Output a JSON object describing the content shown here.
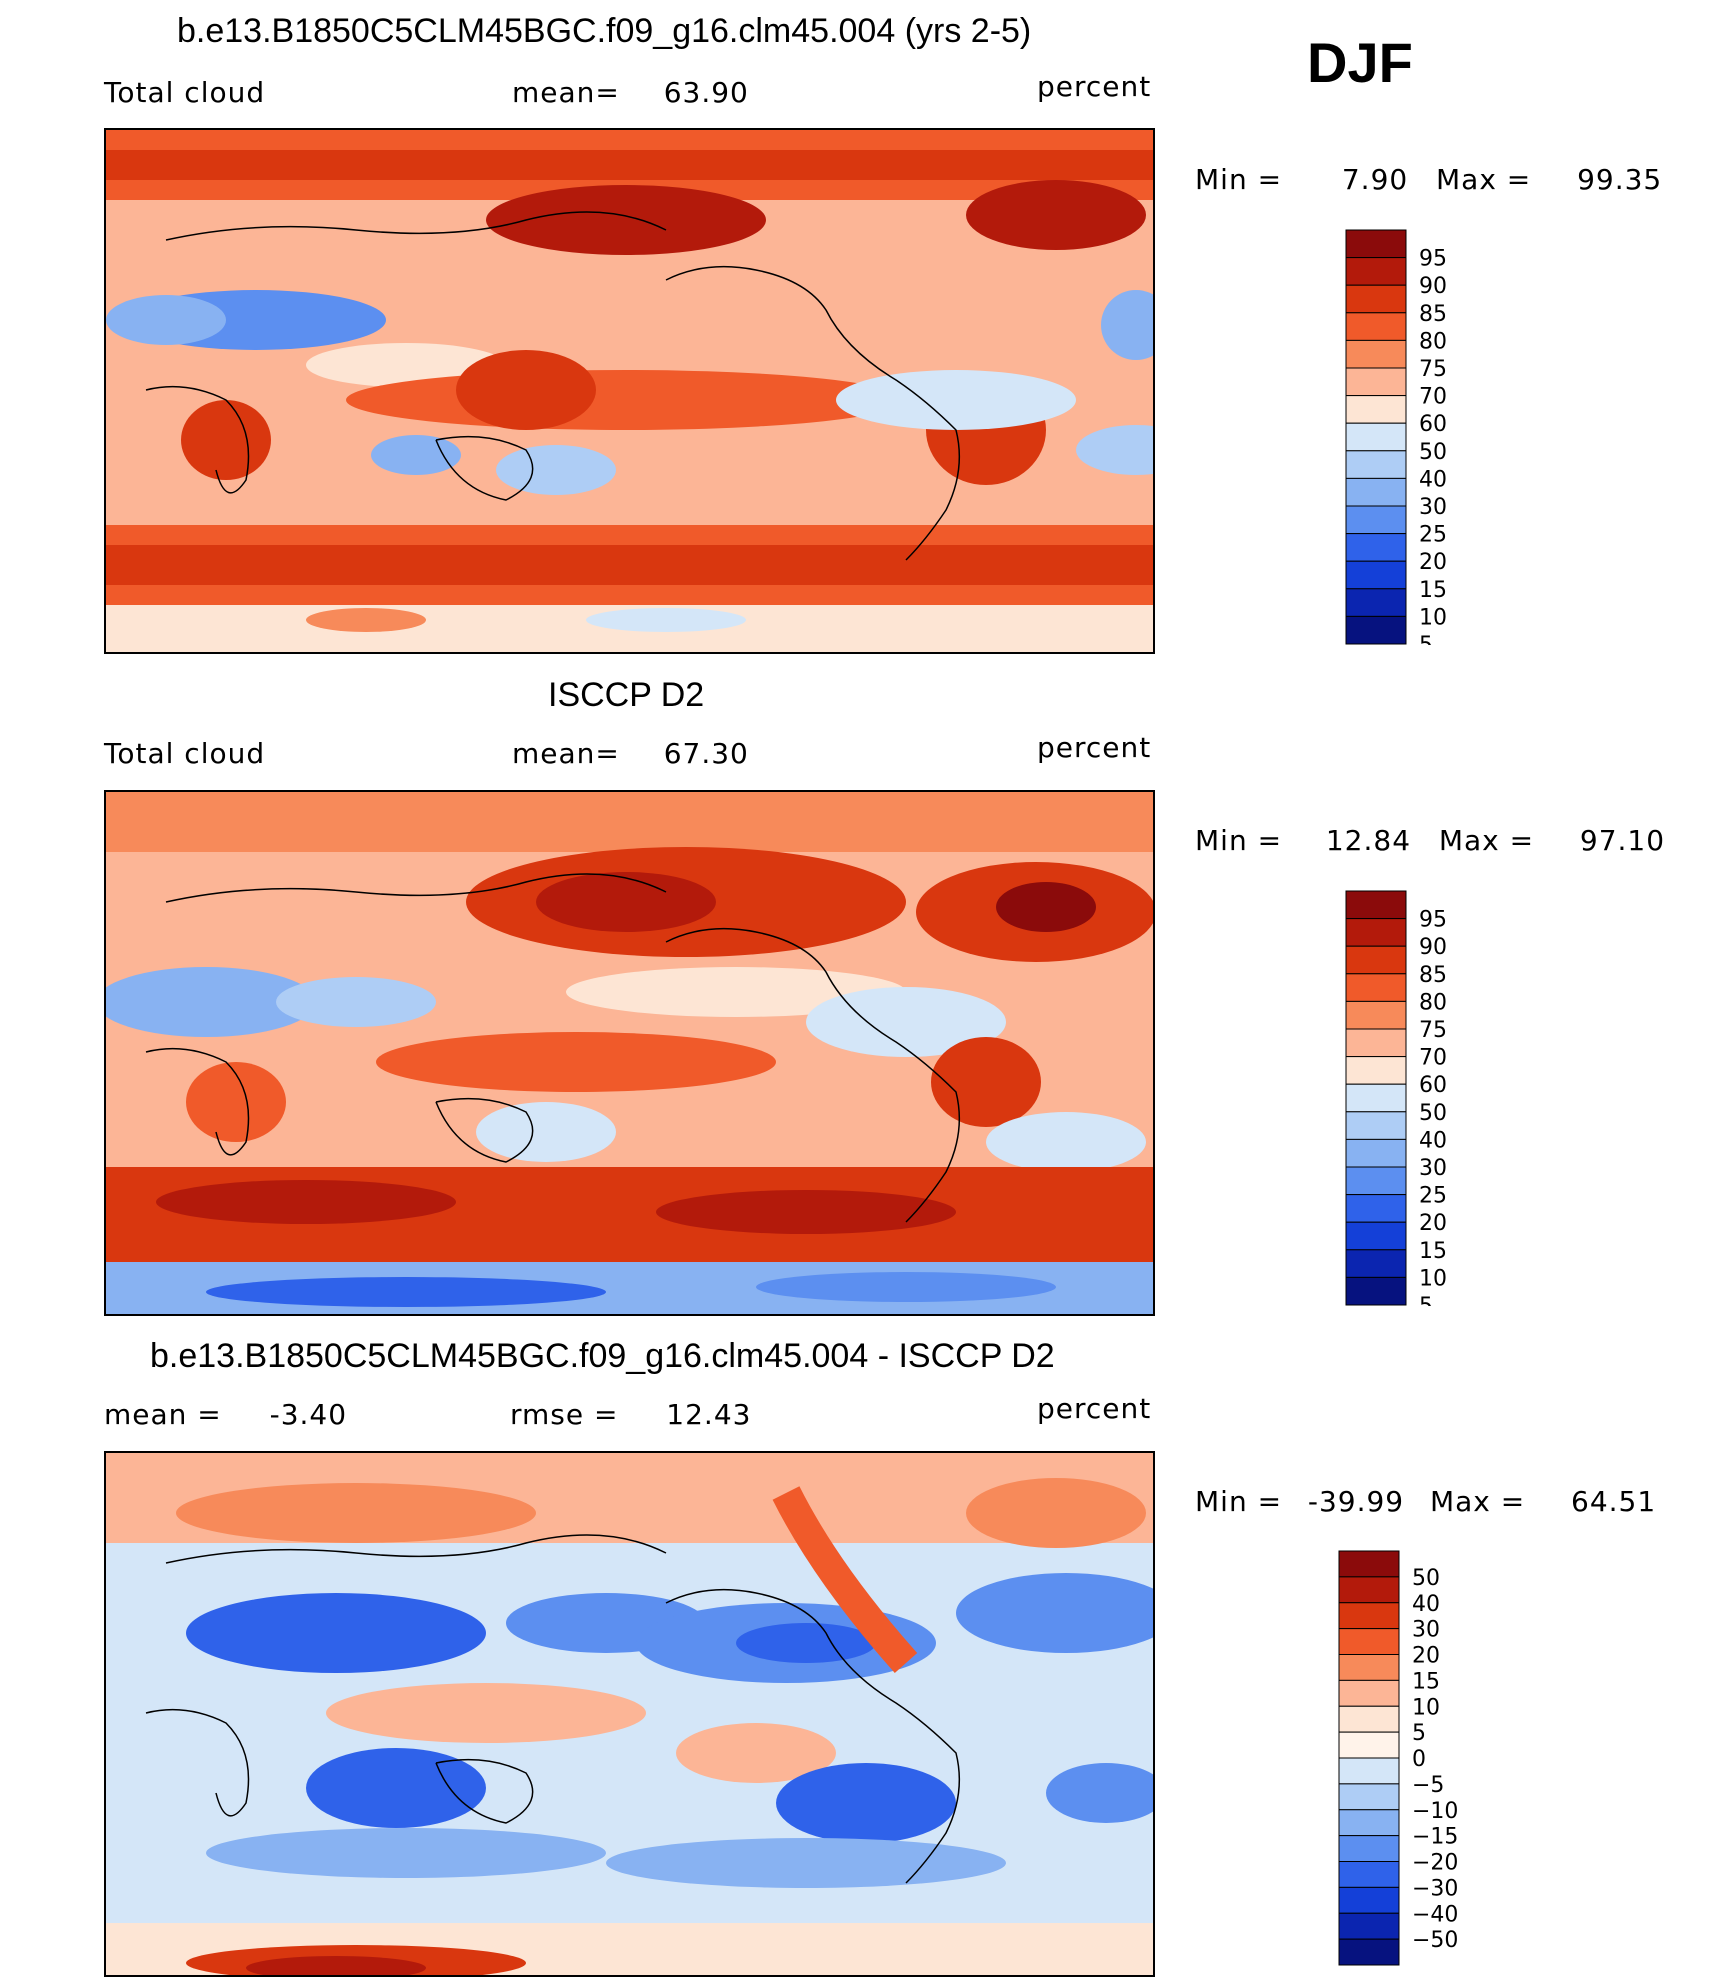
{
  "season": "DJF",
  "chart_data": [
    {
      "type": "heatmap",
      "title": "b.e13.B1850C5CLM45BGC.f09_g16.clm45.004 (yrs 2-5)",
      "left_label": "Total cloud",
      "mean_label": "mean=",
      "mean_value": "63.90",
      "units": "percent",
      "min_label": "Min =",
      "min_value": "7.90",
      "max_label": "Max =",
      "max_value": "99.35",
      "levels": [
        "95",
        "90",
        "85",
        "80",
        "75",
        "70",
        "60",
        "50",
        "40",
        "30",
        "25",
        "20",
        "15",
        "10",
        "5"
      ],
      "colors": [
        "#8b0b0b",
        "#b31a0b",
        "#d9370f",
        "#f05a2a",
        "#f78a5a",
        "#fcb596",
        "#fde5d4",
        "#d4e6f8",
        "#aecdf5",
        "#88b2f2",
        "#5c8ff0",
        "#2f62ea",
        "#1440d8",
        "#0b25b0",
        "#06127f"
      ]
    },
    {
      "type": "heatmap",
      "title": "ISCCP D2",
      "left_label": "Total cloud",
      "mean_label": "mean=",
      "mean_value": "67.30",
      "units": "percent",
      "min_label": "Min =",
      "min_value": "12.84",
      "max_label": "Max =",
      "max_value": "97.10",
      "levels": [
        "95",
        "90",
        "85",
        "80",
        "75",
        "70",
        "60",
        "50",
        "40",
        "30",
        "25",
        "20",
        "15",
        "10",
        "5"
      ],
      "colors": [
        "#8b0b0b",
        "#b31a0b",
        "#d9370f",
        "#f05a2a",
        "#f78a5a",
        "#fcb596",
        "#fde5d4",
        "#d4e6f8",
        "#aecdf5",
        "#88b2f2",
        "#5c8ff0",
        "#2f62ea",
        "#1440d8",
        "#0b25b0",
        "#06127f"
      ]
    },
    {
      "type": "heatmap",
      "title": "b.e13.B1850C5CLM45BGC.f09_g16.clm45.004 - ISCCP D2",
      "left_label": "mean =",
      "mean_label": "",
      "mean_value": "-3.40",
      "rmse_label": "rmse =",
      "rmse_value": "12.43",
      "units": "percent",
      "min_label": "Min =",
      "min_value": "-39.99",
      "max_label": "Max =",
      "max_value": "64.51",
      "levels": [
        "50",
        "40",
        "30",
        "20",
        "15",
        "10",
        "5",
        "0",
        "-5",
        "-10",
        "-15",
        "-20",
        "-30",
        "-40",
        "-50"
      ],
      "colors": [
        "#8b0b0b",
        "#b31a0b",
        "#d9370f",
        "#f05a2a",
        "#f78a5a",
        "#fcb596",
        "#fde5d4",
        "#fff3ea",
        "#d4e6f8",
        "#aecdf5",
        "#88b2f2",
        "#5c8ff0",
        "#2f62ea",
        "#1440d8",
        "#0b25b0",
        "#06127f"
      ]
    }
  ]
}
